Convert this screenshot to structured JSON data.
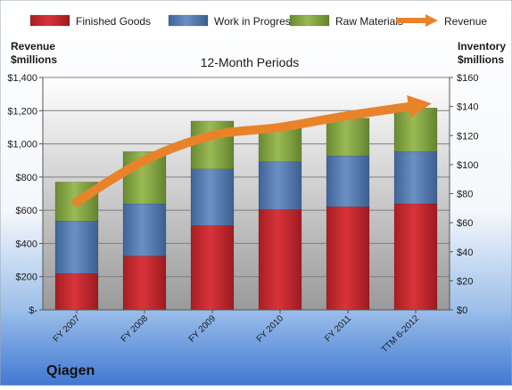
{
  "chart_data": {
    "type": "bar",
    "subtype": "stacked-bar-with-line",
    "title": "12-Month Periods",
    "company": "Qiagen",
    "y_left_label": [
      "Revenue",
      "$millions"
    ],
    "y_right_label": [
      "Inventory",
      "$millions"
    ],
    "categories": [
      "FY 2007",
      "FY 2008",
      "FY 2009",
      "FY 2010",
      "FY 2011",
      "TTM 6-2012"
    ],
    "y_left_ticks": [
      "$-",
      "$200",
      "$400",
      "$600",
      "$800",
      "$1,000",
      "$1,200",
      "$1,400"
    ],
    "y_right_ticks": [
      "$0",
      "$20",
      "$40",
      "$60",
      "$80",
      "$100",
      "$120",
      "$140",
      "$160"
    ],
    "ylim_right": [
      0,
      160
    ],
    "ylim_left": [
      0,
      1400
    ],
    "series": [
      {
        "name": "Finished Goods",
        "axis": "right",
        "color": "#c0282d",
        "values": [
          25,
          37,
          58,
          69,
          71,
          73
        ]
      },
      {
        "name": "Work in Progress",
        "axis": "right",
        "color": "#4f78b0",
        "values": [
          36,
          36,
          39,
          33,
          35,
          36
        ]
      },
      {
        "name": "Raw Materials",
        "axis": "right",
        "color": "#7fa040",
        "values": [
          27,
          36,
          33,
          24,
          26,
          30
        ]
      }
    ],
    "line_series": {
      "name": "Revenue",
      "axis": "left",
      "color": "#e8832a",
      "values": [
        650,
        900,
        1050,
        1100,
        1170,
        1230
      ]
    },
    "grid": true,
    "legend_position": "top"
  }
}
